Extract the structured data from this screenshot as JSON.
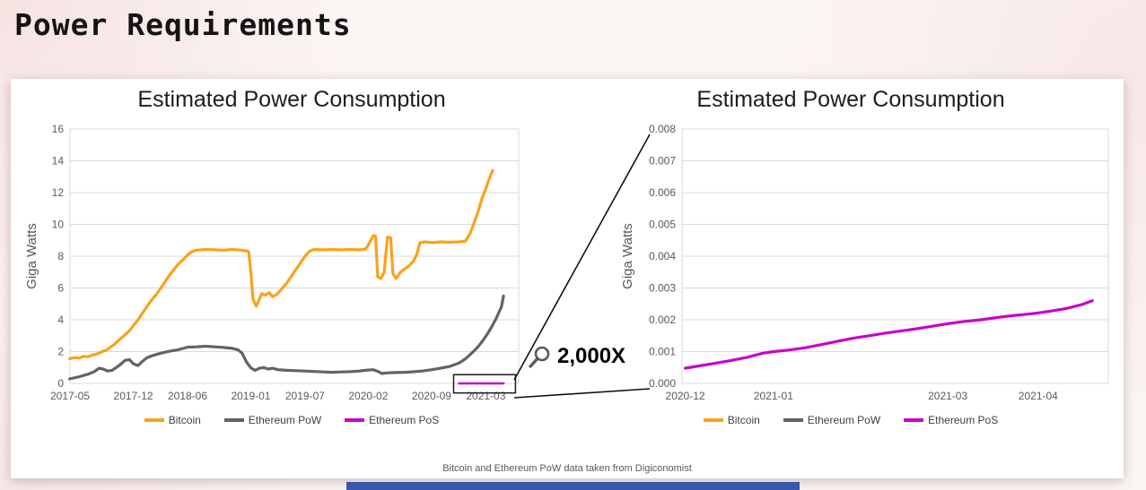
{
  "page": {
    "title": "Power Requirements",
    "footer_note": "Bitcoin and Ethereum PoW data taken from Digiconomist"
  },
  "colors": {
    "bitcoin": "#F9A21B",
    "ethereum_pow": "#636363",
    "ethereum_pos": "#C603CE",
    "grid": "#D9D9D9",
    "axis_text": "#595959",
    "accent_bar": "#3A57A8"
  },
  "zoom_callout": {
    "label": "2,000X",
    "icon": "magnifier-icon"
  },
  "chart_data": [
    {
      "type": "line",
      "title": "Estimated Power Consumption",
      "xlabel": "",
      "ylabel": "Giga Watts",
      "ylim": [
        0,
        16
      ],
      "xlim": [
        2017.333,
        2021.47
      ],
      "grid": true,
      "legend_position": "bottom",
      "yticks": [
        {
          "v": 0,
          "label": "0"
        },
        {
          "v": 2,
          "label": "2"
        },
        {
          "v": 4,
          "label": "4"
        },
        {
          "v": 6,
          "label": "6"
        },
        {
          "v": 8,
          "label": "8"
        },
        {
          "v": 10,
          "label": "10"
        },
        {
          "v": 12,
          "label": "12"
        },
        {
          "v": 14,
          "label": "14"
        },
        {
          "v": 16,
          "label": "16"
        }
      ],
      "xticks": [
        {
          "v": 2017.333,
          "label": "2017-05"
        },
        {
          "v": 2017.917,
          "label": "2017-12"
        },
        {
          "v": 2018.417,
          "label": "2018-06"
        },
        {
          "v": 2019.0,
          "label": "2019-01"
        },
        {
          "v": 2019.5,
          "label": "2019-07"
        },
        {
          "v": 2020.083,
          "label": "2020-02"
        },
        {
          "v": 2020.667,
          "label": "2020-09"
        },
        {
          "v": 2021.167,
          "label": "2021-03"
        }
      ],
      "zoom_box": {
        "x": [
          2020.87,
          2021.44
        ],
        "y": [
          -0.6,
          0.55
        ]
      },
      "legend": [
        {
          "label": "Bitcoin",
          "color": "bitcoin"
        },
        {
          "label": "Ethereum PoW",
          "color": "ethereum_pow"
        },
        {
          "label": "Ethereum PoS",
          "color": "ethereum_pos"
        }
      ],
      "series": [
        {
          "name": "Bitcoin",
          "color": "bitcoin",
          "width": 3.2,
          "points": [
            [
              2017.33,
              1.55
            ],
            [
              2017.38,
              1.62
            ],
            [
              2017.42,
              1.6
            ],
            [
              2017.46,
              1.7
            ],
            [
              2017.5,
              1.68
            ],
            [
              2017.54,
              1.78
            ],
            [
              2017.58,
              1.85
            ],
            [
              2017.63,
              2.0
            ],
            [
              2017.67,
              2.1
            ],
            [
              2017.71,
              2.3
            ],
            [
              2017.75,
              2.5
            ],
            [
              2017.79,
              2.75
            ],
            [
              2017.83,
              3.0
            ],
            [
              2017.88,
              3.3
            ],
            [
              2017.92,
              3.65
            ],
            [
              2017.96,
              4.0
            ],
            [
              2018.0,
              4.4
            ],
            [
              2018.04,
              4.8
            ],
            [
              2018.08,
              5.2
            ],
            [
              2018.13,
              5.6
            ],
            [
              2018.17,
              6.0
            ],
            [
              2018.21,
              6.4
            ],
            [
              2018.25,
              6.8
            ],
            [
              2018.29,
              7.15
            ],
            [
              2018.33,
              7.5
            ],
            [
              2018.38,
              7.8
            ],
            [
              2018.42,
              8.1
            ],
            [
              2018.46,
              8.3
            ],
            [
              2018.5,
              8.38
            ],
            [
              2018.58,
              8.42
            ],
            [
              2018.67,
              8.4
            ],
            [
              2018.75,
              8.38
            ],
            [
              2018.83,
              8.42
            ],
            [
              2018.92,
              8.38
            ],
            [
              2018.98,
              8.3
            ],
            [
              2019.0,
              7.0
            ],
            [
              2019.02,
              5.3
            ],
            [
              2019.05,
              4.85
            ],
            [
              2019.08,
              5.3
            ],
            [
              2019.1,
              5.65
            ],
            [
              2019.13,
              5.55
            ],
            [
              2019.17,
              5.7
            ],
            [
              2019.2,
              5.45
            ],
            [
              2019.24,
              5.6
            ],
            [
              2019.28,
              5.9
            ],
            [
              2019.33,
              6.3
            ],
            [
              2019.38,
              6.8
            ],
            [
              2019.42,
              7.2
            ],
            [
              2019.46,
              7.6
            ],
            [
              2019.5,
              8.0
            ],
            [
              2019.54,
              8.3
            ],
            [
              2019.58,
              8.42
            ],
            [
              2019.67,
              8.4
            ],
            [
              2019.75,
              8.42
            ],
            [
              2019.83,
              8.4
            ],
            [
              2019.92,
              8.42
            ],
            [
              2020.0,
              8.4
            ],
            [
              2020.06,
              8.45
            ],
            [
              2020.1,
              8.9
            ],
            [
              2020.13,
              9.3
            ],
            [
              2020.15,
              9.25
            ],
            [
              2020.17,
              6.7
            ],
            [
              2020.2,
              6.6
            ],
            [
              2020.23,
              7.0
            ],
            [
              2020.26,
              9.2
            ],
            [
              2020.29,
              9.15
            ],
            [
              2020.31,
              6.9
            ],
            [
              2020.34,
              6.6
            ],
            [
              2020.38,
              7.0
            ],
            [
              2020.42,
              7.2
            ],
            [
              2020.46,
              7.4
            ],
            [
              2020.5,
              7.7
            ],
            [
              2020.53,
              8.1
            ],
            [
              2020.56,
              8.85
            ],
            [
              2020.6,
              8.9
            ],
            [
              2020.67,
              8.85
            ],
            [
              2020.75,
              8.9
            ],
            [
              2020.83,
              8.88
            ],
            [
              2020.92,
              8.9
            ],
            [
              2020.98,
              8.95
            ],
            [
              2021.02,
              9.4
            ],
            [
              2021.06,
              10.1
            ],
            [
              2021.1,
              10.9
            ],
            [
              2021.13,
              11.6
            ],
            [
              2021.17,
              12.3
            ],
            [
              2021.2,
              12.9
            ],
            [
              2021.23,
              13.4
            ]
          ]
        },
        {
          "name": "Ethereum PoW",
          "color": "ethereum_pow",
          "width": 3.2,
          "points": [
            [
              2017.33,
              0.28
            ],
            [
              2017.42,
              0.42
            ],
            [
              2017.5,
              0.58
            ],
            [
              2017.56,
              0.75
            ],
            [
              2017.6,
              0.95
            ],
            [
              2017.64,
              0.9
            ],
            [
              2017.68,
              0.78
            ],
            [
              2017.72,
              0.82
            ],
            [
              2017.76,
              1.0
            ],
            [
              2017.8,
              1.2
            ],
            [
              2017.84,
              1.45
            ],
            [
              2017.88,
              1.5
            ],
            [
              2017.92,
              1.22
            ],
            [
              2017.96,
              1.12
            ],
            [
              2018.0,
              1.38
            ],
            [
              2018.04,
              1.6
            ],
            [
              2018.08,
              1.72
            ],
            [
              2018.13,
              1.82
            ],
            [
              2018.17,
              1.9
            ],
            [
              2018.25,
              2.02
            ],
            [
              2018.33,
              2.12
            ],
            [
              2018.42,
              2.28
            ],
            [
              2018.5,
              2.3
            ],
            [
              2018.58,
              2.34
            ],
            [
              2018.67,
              2.3
            ],
            [
              2018.75,
              2.26
            ],
            [
              2018.83,
              2.2
            ],
            [
              2018.88,
              2.12
            ],
            [
              2018.92,
              1.9
            ],
            [
              2018.96,
              1.35
            ],
            [
              2019.0,
              0.98
            ],
            [
              2019.04,
              0.82
            ],
            [
              2019.08,
              0.95
            ],
            [
              2019.12,
              1.0
            ],
            [
              2019.16,
              0.9
            ],
            [
              2019.2,
              0.95
            ],
            [
              2019.25,
              0.86
            ],
            [
              2019.33,
              0.82
            ],
            [
              2019.42,
              0.8
            ],
            [
              2019.5,
              0.78
            ],
            [
              2019.58,
              0.75
            ],
            [
              2019.67,
              0.72
            ],
            [
              2019.75,
              0.7
            ],
            [
              2019.83,
              0.72
            ],
            [
              2019.92,
              0.74
            ],
            [
              2020.0,
              0.78
            ],
            [
              2020.08,
              0.84
            ],
            [
              2020.13,
              0.86
            ],
            [
              2020.17,
              0.76
            ],
            [
              2020.21,
              0.62
            ],
            [
              2020.25,
              0.66
            ],
            [
              2020.33,
              0.68
            ],
            [
              2020.42,
              0.7
            ],
            [
              2020.5,
              0.73
            ],
            [
              2020.58,
              0.78
            ],
            [
              2020.67,
              0.86
            ],
            [
              2020.75,
              0.96
            ],
            [
              2020.83,
              1.06
            ],
            [
              2020.92,
              1.28
            ],
            [
              2020.98,
              1.55
            ],
            [
              2021.02,
              1.8
            ],
            [
              2021.06,
              2.05
            ],
            [
              2021.1,
              2.35
            ],
            [
              2021.14,
              2.7
            ],
            [
              2021.18,
              3.1
            ],
            [
              2021.22,
              3.55
            ],
            [
              2021.26,
              4.05
            ],
            [
              2021.29,
              4.5
            ],
            [
              2021.31,
              4.8
            ],
            [
              2021.33,
              5.5
            ]
          ]
        },
        {
          "name": "Ethereum PoS",
          "color": "ethereum_pos",
          "width": 2.5,
          "points": [
            [
              2020.92,
              0.0005
            ],
            [
              2021.1,
              0.0015
            ],
            [
              2021.33,
              0.0026
            ]
          ]
        }
      ]
    },
    {
      "type": "line",
      "title": "Estimated Power Consumption",
      "xlabel": "",
      "ylabel": "Giga Watts",
      "ylim": [
        0,
        0.008
      ],
      "xlim": [
        2020.914,
        2021.315
      ],
      "grid": true,
      "legend_position": "bottom",
      "yticks": [
        {
          "v": 0,
          "label": "0.000"
        },
        {
          "v": 0.001,
          "label": "0.001"
        },
        {
          "v": 0.002,
          "label": "0.002"
        },
        {
          "v": 0.003,
          "label": "0.003"
        },
        {
          "v": 0.004,
          "label": "0.004"
        },
        {
          "v": 0.005,
          "label": "0.005"
        },
        {
          "v": 0.006,
          "label": "0.006"
        },
        {
          "v": 0.007,
          "label": "0.007"
        },
        {
          "v": 0.008,
          "label": "0.008"
        }
      ],
      "xticks": [
        {
          "v": 2020.917,
          "label": "2020-12"
        },
        {
          "v": 2021.0,
          "label": "2021-01"
        },
        {
          "v": 2021.164,
          "label": "2021-03"
        },
        {
          "v": 2021.249,
          "label": "2021-04"
        }
      ],
      "legend": [
        {
          "label": "Bitcoin",
          "color": "bitcoin"
        },
        {
          "label": "Ethereum PoW",
          "color": "ethereum_pow"
        },
        {
          "label": "Ethereum PoS",
          "color": "ethereum_pos"
        }
      ],
      "series": [
        {
          "name": "Ethereum PoS",
          "color": "ethereum_pos",
          "width": 3.2,
          "points": [
            [
              2020.917,
              0.00048
            ],
            [
              2020.93,
              0.00055
            ],
            [
              2020.945,
              0.00063
            ],
            [
              2020.96,
              0.00072
            ],
            [
              2020.975,
              0.00082
            ],
            [
              2020.99,
              0.00095
            ],
            [
              2021.0,
              0.001
            ],
            [
              2021.015,
              0.00105
            ],
            [
              2021.03,
              0.00112
            ],
            [
              2021.045,
              0.00122
            ],
            [
              2021.06,
              0.00132
            ],
            [
              2021.075,
              0.00142
            ],
            [
              2021.09,
              0.0015
            ],
            [
              2021.105,
              0.00158
            ],
            [
              2021.12,
              0.00165
            ],
            [
              2021.135,
              0.00172
            ],
            [
              2021.15,
              0.0018
            ],
            [
              2021.164,
              0.00188
            ],
            [
              2021.18,
              0.00195
            ],
            [
              2021.195,
              0.002
            ],
            [
              2021.21,
              0.00207
            ],
            [
              2021.225,
              0.00213
            ],
            [
              2021.24,
              0.00218
            ],
            [
              2021.25,
              0.00222
            ],
            [
              2021.262,
              0.00228
            ],
            [
              2021.275,
              0.00235
            ],
            [
              2021.29,
              0.00248
            ],
            [
              2021.3,
              0.0026
            ]
          ]
        }
      ]
    }
  ]
}
